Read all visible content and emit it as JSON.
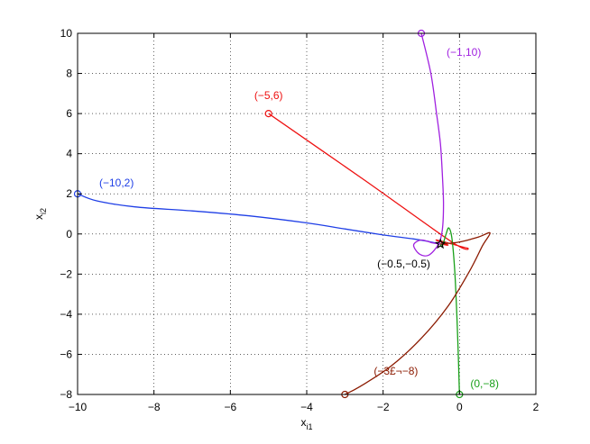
{
  "chart_data": {
    "type": "line",
    "title": "",
    "xlabel": "x",
    "xlabel_sub": "i1",
    "ylabel": "x",
    "ylabel_sub": "i2",
    "xlim": [
      -10,
      2
    ],
    "ylim": [
      -8,
      10
    ],
    "xticks": [
      -10,
      -8,
      -6,
      -4,
      -2,
      0,
      2
    ],
    "yticks": [
      -8,
      -6,
      -4,
      -2,
      0,
      2,
      4,
      6,
      8,
      10
    ],
    "xtick_labels": [
      "−10",
      "−8",
      "−6",
      "−4",
      "−2",
      "0",
      "2"
    ],
    "ytick_labels": [
      "−8",
      "−6",
      "−4",
      "−2",
      "0",
      "2",
      "4",
      "6",
      "8",
      "10"
    ],
    "grid": true,
    "equilibrium": {
      "x": -0.5,
      "y": -0.5,
      "label": "(−0.5,−0.5)",
      "color": "#000000"
    },
    "series": [
      {
        "label": "(−10,2)",
        "color": "#1f3fe6",
        "start": [
          -10,
          2
        ],
        "points": [
          [
            -10,
            2
          ],
          [
            -9.5,
            1.65
          ],
          [
            -8.5,
            1.35
          ],
          [
            -7,
            1.15
          ],
          [
            -5.5,
            0.9
          ],
          [
            -4,
            0.55
          ],
          [
            -3,
            0.25
          ],
          [
            -2,
            -0.05
          ],
          [
            -1.2,
            -0.25
          ],
          [
            -0.8,
            -0.38
          ],
          [
            -0.5,
            -0.5
          ]
        ]
      },
      {
        "label": "(−5,6)",
        "color": "#ee1111",
        "start": [
          -5,
          6
        ],
        "points": [
          [
            -5,
            6
          ],
          [
            -2.5,
            2.7
          ],
          [
            -0.2,
            -0.4
          ],
          [
            0.2,
            -0.7
          ],
          [
            -0.6,
            -0.3
          ],
          [
            -0.3,
            -0.55
          ],
          [
            -0.5,
            -0.5
          ]
        ]
      },
      {
        "label": "(−1,10)",
        "color": "#a020e0",
        "start": [
          -1,
          10
        ],
        "points": [
          [
            -1,
            10
          ],
          [
            -0.75,
            8
          ],
          [
            -0.6,
            6
          ],
          [
            -0.5,
            4.5
          ],
          [
            -0.45,
            3
          ],
          [
            -0.42,
            1.5
          ],
          [
            -0.45,
            0.2
          ],
          [
            -0.55,
            -0.5
          ],
          [
            -0.8,
            -1.05
          ],
          [
            -1.05,
            -1.0
          ],
          [
            -1.2,
            -0.55
          ],
          [
            -1.0,
            -0.3
          ],
          [
            -0.7,
            -0.45
          ],
          [
            -0.5,
            -0.5
          ]
        ]
      },
      {
        "label": "(0,−8)",
        "color": "#18a018",
        "start": [
          0,
          -8
        ],
        "points": [
          [
            0,
            -8
          ],
          [
            -0.05,
            -5
          ],
          [
            -0.12,
            -2
          ],
          [
            -0.2,
            -0.2
          ],
          [
            -0.28,
            0.3
          ],
          [
            -0.35,
            0.0
          ],
          [
            -0.45,
            -0.6
          ],
          [
            -0.5,
            -0.5
          ]
        ]
      },
      {
        "label": "(−3£¬−8)",
        "color": "#8b1a00",
        "start": [
          -3,
          -8
        ],
        "points": [
          [
            -3,
            -8
          ],
          [
            -2.6,
            -7.6
          ],
          [
            -1.8,
            -6.6
          ],
          [
            -1.0,
            -5.2
          ],
          [
            -0.3,
            -3.6
          ],
          [
            0.25,
            -1.9
          ],
          [
            0.6,
            -0.6
          ],
          [
            0.8,
            0.05
          ],
          [
            0.5,
            -0.15
          ],
          [
            0.0,
            -0.4
          ],
          [
            -0.5,
            -0.5
          ]
        ]
      }
    ]
  }
}
